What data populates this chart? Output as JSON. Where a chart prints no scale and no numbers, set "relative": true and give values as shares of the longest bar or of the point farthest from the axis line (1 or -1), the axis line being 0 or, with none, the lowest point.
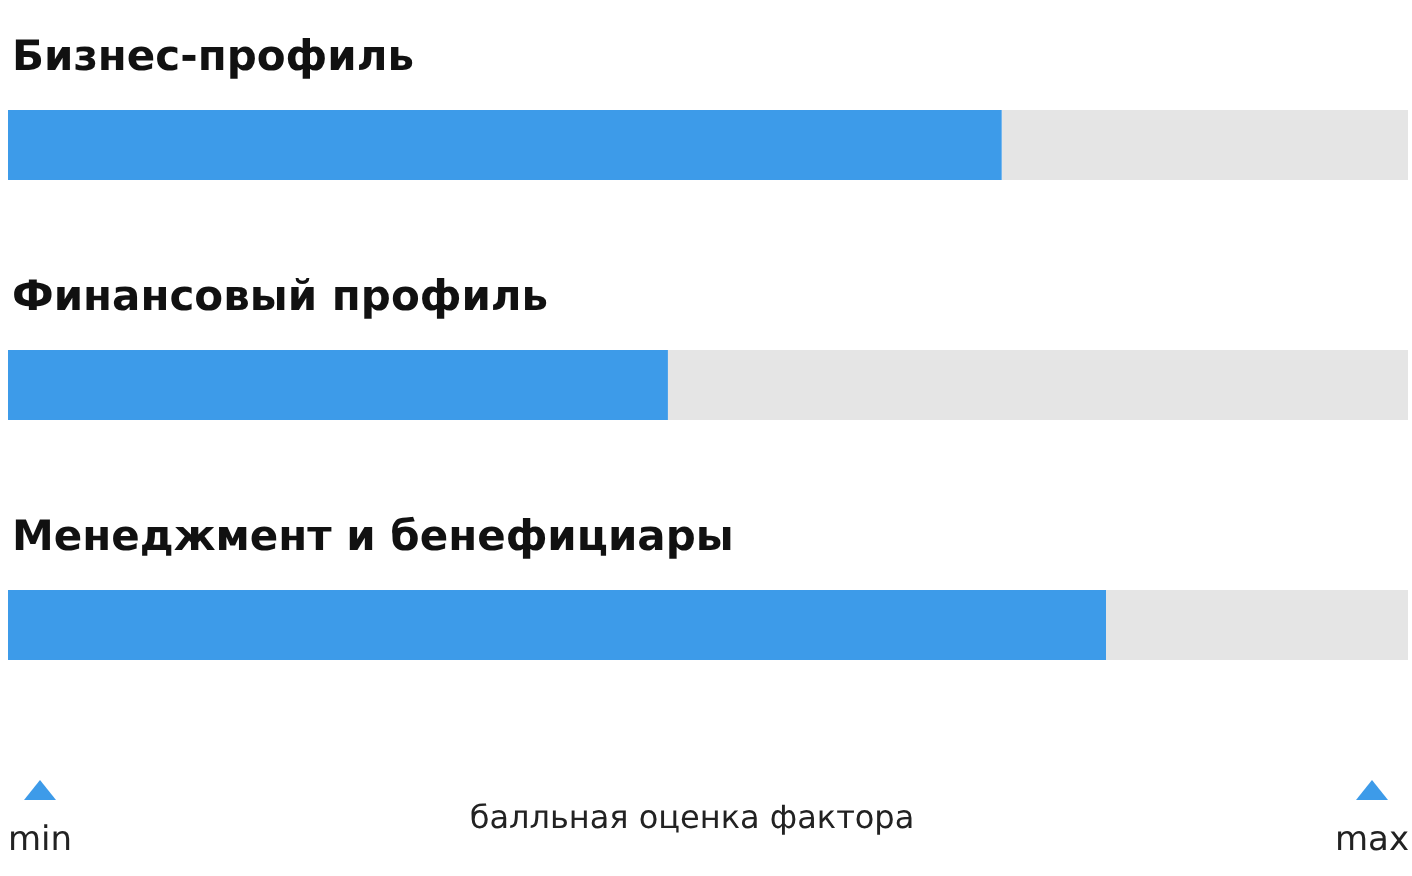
{
  "chart_data": {
    "type": "bar",
    "orientation": "horizontal",
    "relative": true,
    "categories": [
      "Бизнес-профиль",
      "Финансовый профиль",
      "Менеджмент и бенефициары"
    ],
    "values": [
      0.905,
      0.601,
      1
    ],
    "color": "#3d9be9",
    "xlabel": "балльная оценка фактора",
    "annotations": [
      "min",
      "max"
    ]
  }
}
